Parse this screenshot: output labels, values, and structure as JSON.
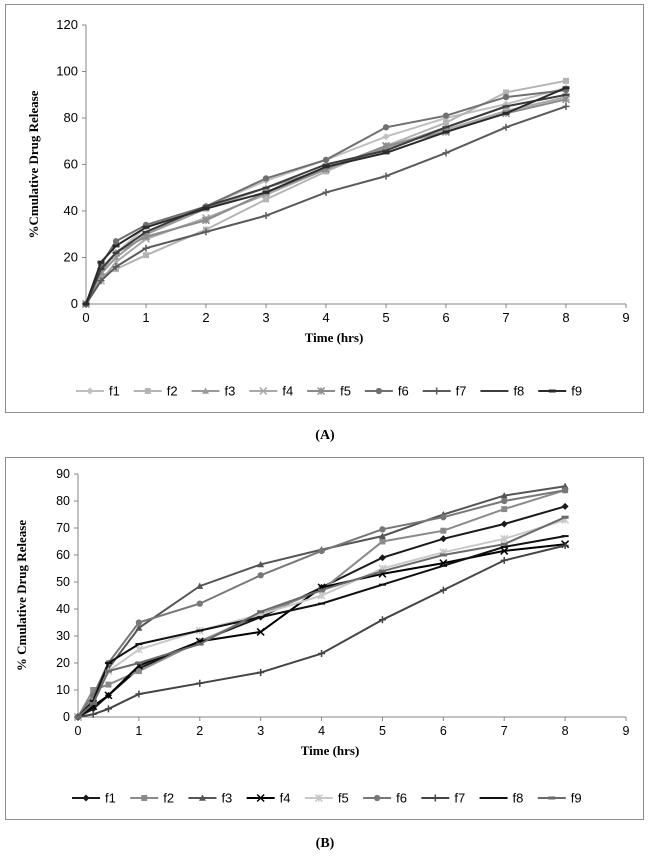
{
  "captions": {
    "a": "(A)",
    "b": "(B)"
  },
  "chart_data": [
    {
      "type": "line",
      "xlabel": "Time  (hrs)",
      "ylabel": "%Cmulative  Drug Release",
      "xlim": [
        0,
        9
      ],
      "ylim": [
        0,
        120
      ],
      "xticks": [
        0,
        1,
        2,
        3,
        4,
        5,
        6,
        7,
        8,
        9
      ],
      "yticks": [
        0,
        20,
        40,
        60,
        80,
        100,
        120
      ],
      "grid": false,
      "legend_position": "bottom",
      "x": [
        0,
        0.25,
        0.5,
        1,
        2,
        3,
        4,
        5,
        6,
        7,
        8
      ],
      "series": [
        {
          "name": "f1",
          "color": "#c0c0c0",
          "marker": "diamond",
          "values": [
            0,
            15,
            22,
            33,
            42,
            53,
            62,
            72,
            80,
            86,
            93
          ]
        },
        {
          "name": "f2",
          "color": "#b4b4b4",
          "marker": "square",
          "values": [
            0,
            12,
            15,
            21,
            32,
            45,
            57,
            68,
            78,
            91,
            96
          ]
        },
        {
          "name": "f3",
          "color": "#9a9a9a",
          "marker": "triangle",
          "values": [
            0,
            13,
            20,
            30,
            41,
            50,
            58,
            67,
            76,
            85,
            90
          ]
        },
        {
          "name": "f4",
          "color": "#a8a8a8",
          "marker": "x",
          "values": [
            0,
            10,
            18,
            28,
            37,
            47,
            58,
            68,
            75,
            83,
            89
          ]
        },
        {
          "name": "f5",
          "color": "#8c8c8c",
          "marker": "star",
          "values": [
            0,
            14,
            22,
            29,
            36,
            48,
            58,
            68,
            74,
            82,
            88
          ]
        },
        {
          "name": "f6",
          "color": "#707070",
          "marker": "circle",
          "values": [
            0,
            17,
            27,
            34,
            42,
            54,
            62,
            76,
            81,
            89,
            92
          ]
        },
        {
          "name": "f7",
          "color": "#5a5a5a",
          "marker": "plus",
          "values": [
            0,
            10,
            16,
            24,
            31,
            38,
            48,
            55,
            65,
            76,
            85
          ]
        },
        {
          "name": "f8",
          "color": "#3c3c3c",
          "marker": "dash",
          "values": [
            0,
            15,
            22,
            31,
            42,
            50,
            60,
            66,
            76,
            85,
            90
          ]
        },
        {
          "name": "f9",
          "color": "#2a2a2a",
          "marker": "bar",
          "values": [
            0,
            18,
            25,
            33,
            41,
            48,
            59,
            65,
            74,
            82,
            93
          ]
        }
      ]
    },
    {
      "type": "line",
      "xlabel": "Time (hrs)",
      "ylabel": "% Cmulative  Drug Release",
      "xlim": [
        0,
        9
      ],
      "ylim": [
        0,
        90
      ],
      "xticks": [
        0,
        1,
        2,
        3,
        4,
        5,
        6,
        7,
        8,
        9
      ],
      "yticks": [
        0,
        10,
        20,
        30,
        40,
        50,
        60,
        70,
        80,
        90
      ],
      "grid": false,
      "legend_position": "bottom",
      "x": [
        0,
        0.25,
        0.5,
        1,
        2,
        3,
        4,
        5,
        6,
        7,
        8
      ],
      "series": [
        {
          "name": "f1",
          "color": "#1a1a1a",
          "marker": "diamond",
          "values": [
            0,
            3,
            8,
            18,
            28,
            37,
            48,
            59,
            66,
            71.5,
            78
          ]
        },
        {
          "name": "f2",
          "color": "#8a8a8a",
          "marker": "square",
          "values": [
            0,
            10,
            12,
            17,
            28,
            38,
            47,
            65,
            69,
            77,
            84
          ]
        },
        {
          "name": "f3",
          "color": "#555555",
          "marker": "triangle",
          "values": [
            0,
            5,
            18,
            33,
            48.5,
            56.5,
            62,
            67,
            75,
            82,
            85.5
          ]
        },
        {
          "name": "f4",
          "color": "#000000",
          "marker": "x",
          "values": [
            0,
            4,
            8,
            19,
            28,
            31.5,
            48,
            53,
            57,
            61.5,
            64
          ]
        },
        {
          "name": "f5",
          "color": "#c8c8c8",
          "marker": "star",
          "values": [
            0,
            6,
            17,
            25,
            32,
            38,
            45,
            55,
            61,
            66,
            73
          ]
        },
        {
          "name": "f6",
          "color": "#777777",
          "marker": "circle",
          "values": [
            0,
            8,
            20,
            35,
            42,
            52.5,
            61.5,
            69.5,
            74,
            80,
            84
          ]
        },
        {
          "name": "f7",
          "color": "#444444",
          "marker": "plus",
          "values": [
            0,
            1,
            3,
            8.5,
            12.5,
            16.5,
            23.5,
            36,
            47,
            58,
            63.5
          ]
        },
        {
          "name": "f8",
          "color": "#111111",
          "marker": "dash",
          "values": [
            0,
            6,
            20,
            27,
            32,
            37,
            42,
            49,
            56,
            63,
            67
          ]
        },
        {
          "name": "f9",
          "color": "#6a6a6a",
          "marker": "bar",
          "values": [
            0,
            5,
            17,
            20,
            27,
            39,
            47,
            54,
            60,
            64,
            74
          ]
        }
      ]
    }
  ]
}
